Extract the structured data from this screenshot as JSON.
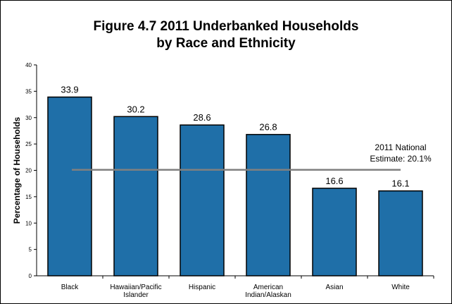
{
  "chart_data": {
    "type": "bar",
    "title_lines": [
      "Figure 4.7  2011 Underbanked Households",
      "by Race and Ethnicity"
    ],
    "ylabel": "Percentage of Households",
    "xlabel": "",
    "categories": [
      [
        "Black"
      ],
      [
        "Hawaiian/Pacific",
        "Islander"
      ],
      [
        "Hispanic"
      ],
      [
        "American",
        "Indian/Alaskan"
      ],
      [
        "Asian"
      ],
      [
        "White"
      ]
    ],
    "values": [
      33.9,
      30.2,
      28.6,
      26.8,
      16.6,
      16.1
    ],
    "value_labels": [
      "33.9",
      "30.2",
      "28.6",
      "26.8",
      "16.6",
      "16.1"
    ],
    "ylim": [
      0,
      40
    ],
    "yticks": [
      0,
      5,
      10,
      15,
      20,
      25,
      30,
      35,
      40
    ],
    "grid": false,
    "bar_color": "#1f6fa8",
    "reference_line": {
      "value": 20.1,
      "color": "#808080",
      "label_lines": [
        "2011 National",
        "Estimate: 20.1%"
      ]
    }
  }
}
